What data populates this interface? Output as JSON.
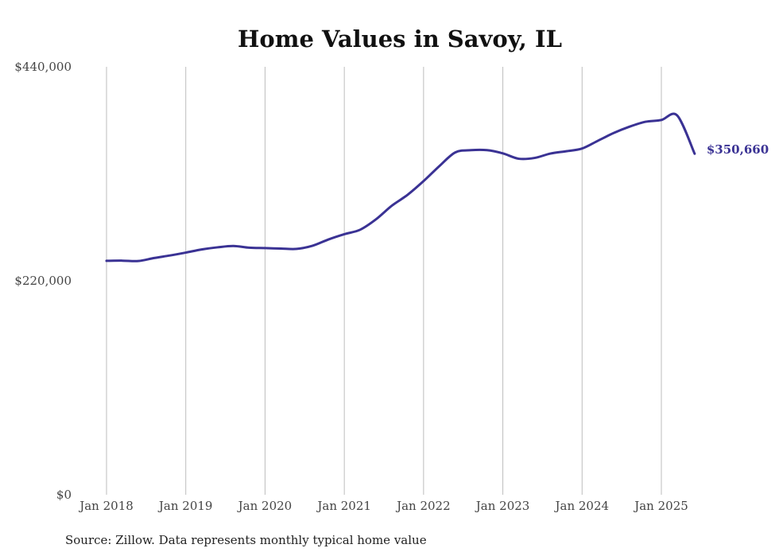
{
  "chart_data": {
    "type": "line",
    "title": "Home Values in Savoy, IL",
    "source": "Source: Zillow. Data represents monthly typical home value",
    "ylim": [
      0,
      440000
    ],
    "yticks": [
      {
        "value": 0,
        "label": "$0"
      },
      {
        "value": 220000,
        "label": "$220,000"
      },
      {
        "value": 440000,
        "label": "$440,000"
      }
    ],
    "xticks": [
      {
        "value": 2018.0,
        "label": "Jan 2018"
      },
      {
        "value": 2019.0,
        "label": "Jan 2019"
      },
      {
        "value": 2020.0,
        "label": "Jan 2020"
      },
      {
        "value": 2021.0,
        "label": "Jan 2021"
      },
      {
        "value": 2022.0,
        "label": "Jan 2022"
      },
      {
        "value": 2023.0,
        "label": "Jan 2023"
      },
      {
        "value": 2024.0,
        "label": "Jan 2024"
      },
      {
        "value": 2025.0,
        "label": "Jan 2025"
      }
    ],
    "grid": "vertical",
    "line_color": "#3a3294",
    "end_label": "$350,660",
    "series": [
      {
        "x": [
          2018.0,
          2018.2,
          2018.4,
          2018.6,
          2018.8,
          2019.0,
          2019.2,
          2019.4,
          2019.6,
          2019.8,
          2020.0,
          2020.2,
          2020.4,
          2020.6,
          2020.8,
          2021.0,
          2021.2,
          2021.4,
          2021.6,
          2021.8,
          2022.0,
          2022.2,
          2022.4,
          2022.6,
          2022.8,
          2023.0,
          2023.2,
          2023.4,
          2023.6,
          2023.8,
          2024.0,
          2024.2,
          2024.4,
          2024.6,
          2024.8,
          2025.0,
          2025.2,
          2025.42
        ],
        "y": [
          240500,
          240700,
          240300,
          243400,
          246000,
          249000,
          252200,
          254400,
          255800,
          254000,
          253600,
          253100,
          252800,
          256000,
          262500,
          267900,
          272500,
          283200,
          297200,
          308500,
          322500,
          338000,
          352000,
          354300,
          354300,
          351000,
          345500,
          346300,
          350800,
          353200,
          356000,
          364000,
          372000,
          378500,
          383500,
          385300,
          390000,
          350660
        ]
      }
    ]
  }
}
